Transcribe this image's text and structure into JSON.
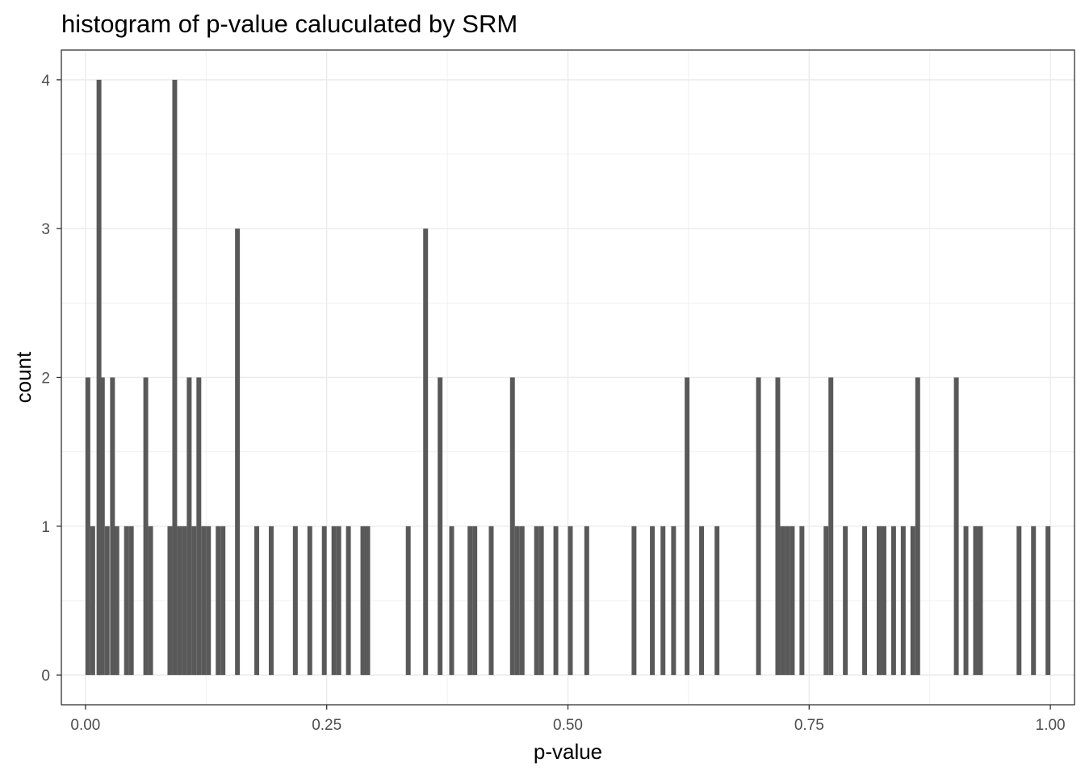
{
  "chart_data": {
    "type": "bar",
    "title": "histogram of p-value caluculated by SRM",
    "xlabel": "p-value",
    "ylabel": "count",
    "xlim": [
      -0.025,
      1.025
    ],
    "ylim": [
      -0.2,
      4.2
    ],
    "x_ticks": [
      0,
      0.25,
      0.5,
      0.75,
      1
    ],
    "x_tick_labels": [
      "0.00",
      "0.25",
      "0.50",
      "0.75",
      "1.00"
    ],
    "y_ticks": [
      0,
      1,
      2,
      3,
      4
    ],
    "y_tick_labels": [
      "0",
      "1",
      "2",
      "3",
      "4"
    ],
    "grid": true,
    "bar_color": "#595959",
    "bin_width": 0.005,
    "bins": [
      {
        "x": 0.0,
        "count": 2
      },
      {
        "x": 0.005,
        "count": 1
      },
      {
        "x": 0.0115,
        "count": 4
      },
      {
        "x": 0.015,
        "count": 2
      },
      {
        "x": 0.02,
        "count": 1
      },
      {
        "x": 0.0255,
        "count": 2
      },
      {
        "x": 0.03,
        "count": 1
      },
      {
        "x": 0.04,
        "count": 1
      },
      {
        "x": 0.045,
        "count": 1
      },
      {
        "x": 0.06,
        "count": 2
      },
      {
        "x": 0.065,
        "count": 1
      },
      {
        "x": 0.085,
        "count": 1
      },
      {
        "x": 0.09,
        "count": 4
      },
      {
        "x": 0.095,
        "count": 1
      },
      {
        "x": 0.1,
        "count": 1
      },
      {
        "x": 0.105,
        "count": 2
      },
      {
        "x": 0.11,
        "count": 1
      },
      {
        "x": 0.115,
        "count": 2
      },
      {
        "x": 0.12,
        "count": 1
      },
      {
        "x": 0.125,
        "count": 1
      },
      {
        "x": 0.135,
        "count": 1
      },
      {
        "x": 0.14,
        "count": 1
      },
      {
        "x": 0.155,
        "count": 3
      },
      {
        "x": 0.175,
        "count": 1
      },
      {
        "x": 0.19,
        "count": 1
      },
      {
        "x": 0.215,
        "count": 1
      },
      {
        "x": 0.23,
        "count": 1
      },
      {
        "x": 0.245,
        "count": 1
      },
      {
        "x": 0.255,
        "count": 1
      },
      {
        "x": 0.26,
        "count": 1
      },
      {
        "x": 0.27,
        "count": 1
      },
      {
        "x": 0.285,
        "count": 1
      },
      {
        "x": 0.29,
        "count": 1
      },
      {
        "x": 0.332,
        "count": 1
      },
      {
        "x": 0.35,
        "count": 3
      },
      {
        "x": 0.365,
        "count": 2
      },
      {
        "x": 0.377,
        "count": 1
      },
      {
        "x": 0.396,
        "count": 1
      },
      {
        "x": 0.401,
        "count": 1
      },
      {
        "x": 0.418,
        "count": 1
      },
      {
        "x": 0.44,
        "count": 2
      },
      {
        "x": 0.445,
        "count": 1
      },
      {
        "x": 0.45,
        "count": 1
      },
      {
        "x": 0.465,
        "count": 1
      },
      {
        "x": 0.47,
        "count": 1
      },
      {
        "x": 0.485,
        "count": 1
      },
      {
        "x": 0.5,
        "count": 1
      },
      {
        "x": 0.517,
        "count": 1
      },
      {
        "x": 0.566,
        "count": 1
      },
      {
        "x": 0.585,
        "count": 1
      },
      {
        "x": 0.596,
        "count": 1
      },
      {
        "x": 0.607,
        "count": 1
      },
      {
        "x": 0.621,
        "count": 2
      },
      {
        "x": 0.636,
        "count": 1
      },
      {
        "x": 0.652,
        "count": 1
      },
      {
        "x": 0.695,
        "count": 2
      },
      {
        "x": 0.715,
        "count": 2
      },
      {
        "x": 0.72,
        "count": 1
      },
      {
        "x": 0.725,
        "count": 1
      },
      {
        "x": 0.73,
        "count": 1
      },
      {
        "x": 0.74,
        "count": 1
      },
      {
        "x": 0.765,
        "count": 1
      },
      {
        "x": 0.77,
        "count": 2
      },
      {
        "x": 0.785,
        "count": 1
      },
      {
        "x": 0.805,
        "count": 1
      },
      {
        "x": 0.82,
        "count": 1
      },
      {
        "x": 0.825,
        "count": 1
      },
      {
        "x": 0.835,
        "count": 1
      },
      {
        "x": 0.845,
        "count": 1
      },
      {
        "x": 0.855,
        "count": 1
      },
      {
        "x": 0.86,
        "count": 2
      },
      {
        "x": 0.9,
        "count": 2
      },
      {
        "x": 0.91,
        "count": 1
      },
      {
        "x": 0.92,
        "count": 1
      },
      {
        "x": 0.925,
        "count": 1
      },
      {
        "x": 0.965,
        "count": 1
      },
      {
        "x": 0.98,
        "count": 1
      },
      {
        "x": 0.995,
        "count": 1
      }
    ]
  }
}
